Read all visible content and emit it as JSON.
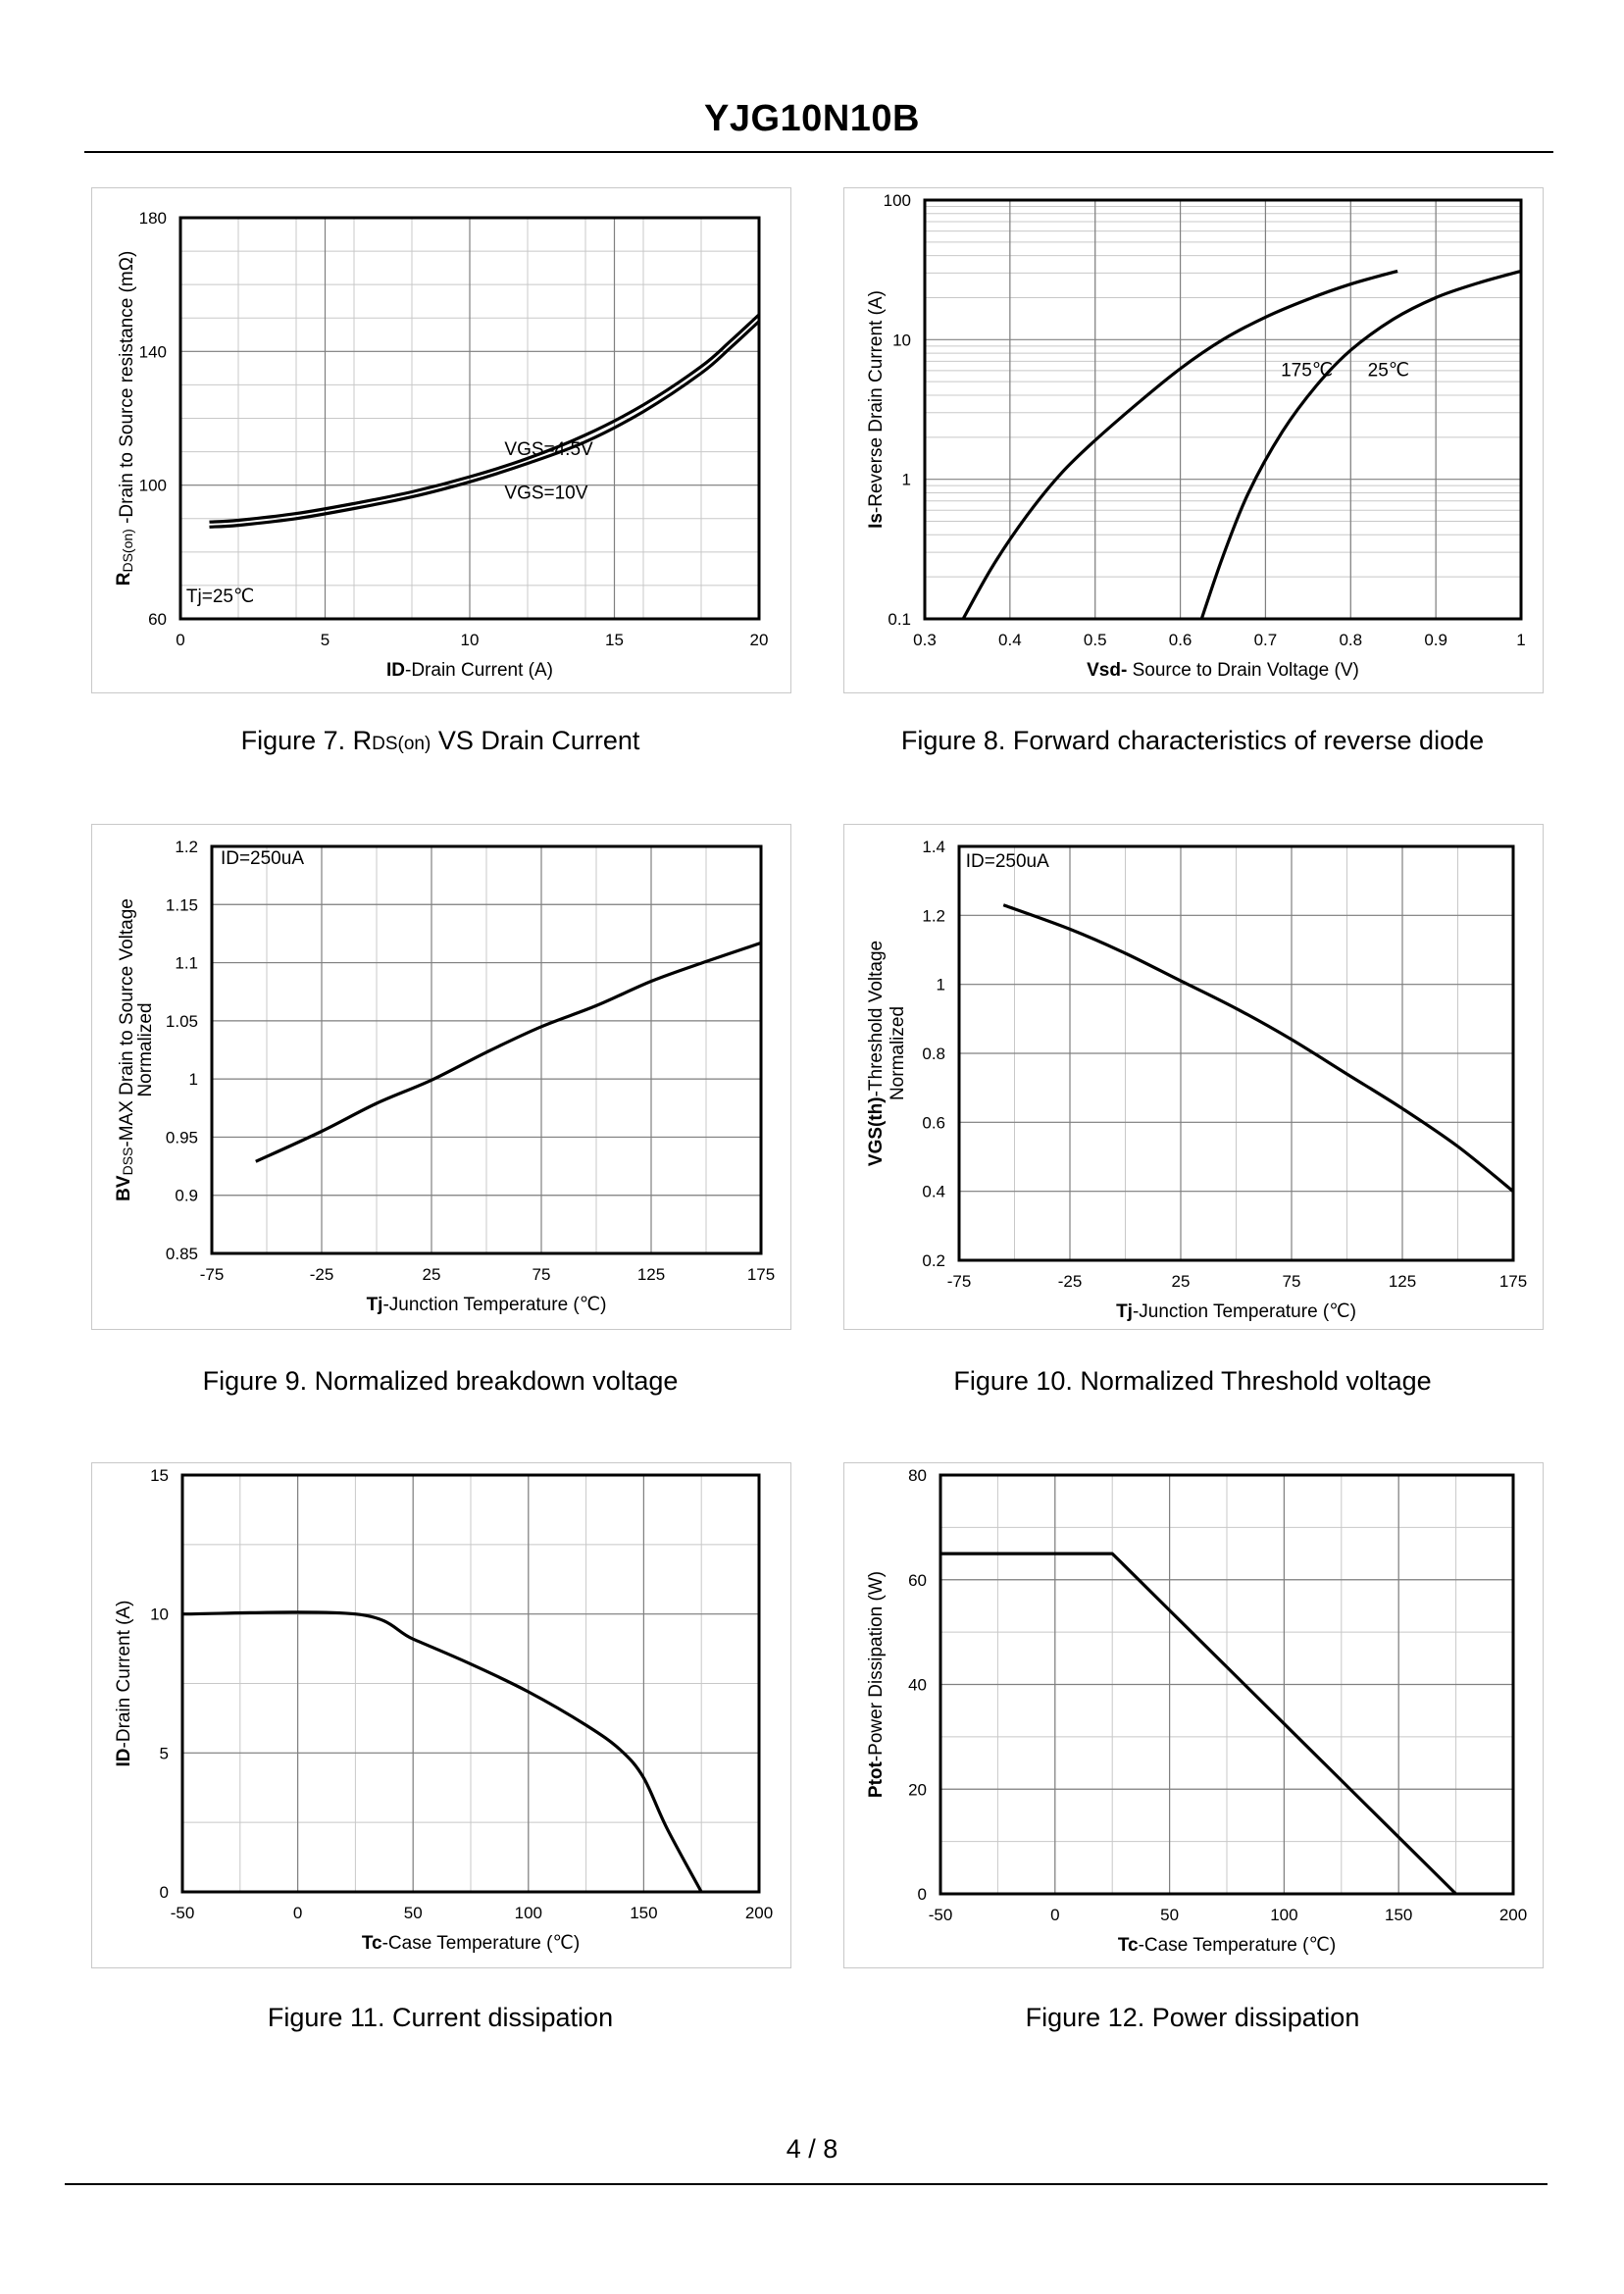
{
  "header": {
    "title": "YJG10N10B"
  },
  "footer": {
    "page": "4 / 8"
  },
  "captions": [
    {
      "prefix": "Figure 7.  R",
      "sub": "DS(on)",
      "suffix": " VS Drain Current"
    },
    {
      "prefix": "Figure 8.  Forward characteristics of reverse diode",
      "sub": "",
      "suffix": ""
    },
    {
      "prefix": "Figure 9.  Normalized breakdown voltage",
      "sub": "",
      "suffix": ""
    },
    {
      "prefix": "Figure 10.  Normalized Threshold voltage",
      "sub": "",
      "suffix": ""
    },
    {
      "prefix": "Figure 11.  Current dissipation",
      "sub": "",
      "suffix": ""
    },
    {
      "prefix": "Figure 12.  Power dissipation",
      "sub": "",
      "suffix": ""
    }
  ],
  "chart_data": [
    {
      "id": "fig7",
      "type": "line",
      "title": "Figure 7. RDS(on) VS Drain Current",
      "xlabel": {
        "parts": [
          {
            "t": "ID",
            "b": true
          },
          {
            "t": "-Drain Current  (A)"
          }
        ]
      },
      "ylabel": {
        "parts": [
          {
            "t": "R",
            "b": true
          },
          {
            "t": "DS(on)",
            "sub": true
          },
          {
            "t": " -Drain to Source resistance (mΩ)"
          }
        ]
      },
      "xlim": [
        0,
        20
      ],
      "ylim": [
        60,
        180
      ],
      "xticks": [
        0,
        5,
        10,
        15,
        20
      ],
      "yticks": [
        60,
        100,
        140,
        180
      ],
      "xminor": 10,
      "yminor": 12,
      "ylog": false,
      "series": [
        {
          "name": "VGS=4.5V",
          "x": [
            1,
            2,
            4,
            6,
            8,
            10,
            12,
            14,
            16,
            18,
            19,
            20
          ],
          "y": [
            89,
            89.5,
            91.5,
            94.5,
            98,
            102.5,
            108,
            115,
            124,
            135.5,
            143,
            151
          ]
        },
        {
          "name": "VGS=10V",
          "x": [
            1,
            2,
            4,
            6,
            8,
            10,
            12,
            14,
            16,
            18,
            19,
            20
          ],
          "y": [
            87.5,
            88,
            90,
            93,
            96.5,
            101,
            106.5,
            113,
            122,
            133.5,
            141,
            149
          ]
        }
      ],
      "annotations": [
        {
          "text": "VGS=4.5V",
          "x": 11.2,
          "y": 109
        },
        {
          "text": "VGS=10V",
          "x": 11.2,
          "y": 96
        },
        {
          "text": "Tj=25℃",
          "x": 0.2,
          "y": 65
        }
      ]
    },
    {
      "id": "fig8",
      "type": "line",
      "title": "Figure 8. Forward characteristics of reverse diode",
      "xlabel": {
        "parts": [
          {
            "t": "Vsd-",
            "b": true
          },
          {
            "t": " Source to Drain Voltage (V)"
          }
        ]
      },
      "ylabel": {
        "parts": [
          {
            "t": "Is",
            "b": true
          },
          {
            "t": "-Reverse  Drain Current  (A)"
          }
        ]
      },
      "xlim": [
        0.3,
        1.0
      ],
      "ylim": [
        0.1,
        100
      ],
      "ylog": true,
      "xticks": [
        0.3,
        0.4,
        0.5,
        0.6,
        0.7,
        0.8,
        0.9,
        1.0
      ],
      "xticklabels": [
        "0.3",
        "0.4",
        "0.5",
        "0.6",
        "0.7",
        "0.8",
        "0.9",
        "1"
      ],
      "yticks": [
        0.1,
        1,
        10,
        100
      ],
      "yticklabels": [
        "0.1",
        "1",
        "10",
        "100"
      ],
      "xminor": 7,
      "series": [
        {
          "name": "175℃",
          "x": [
            0.345,
            0.38,
            0.42,
            0.46,
            0.5,
            0.55,
            0.6,
            0.65,
            0.7,
            0.75,
            0.8,
            0.855
          ],
          "y": [
            0.1,
            0.24,
            0.55,
            1.1,
            1.9,
            3.5,
            6.2,
            10,
            14.5,
            19.5,
            25,
            31
          ]
        },
        {
          "name": "25℃",
          "x": [
            0.625,
            0.65,
            0.68,
            0.72,
            0.76,
            0.8,
            0.85,
            0.9,
            0.95,
            1.0
          ],
          "y": [
            0.1,
            0.28,
            0.8,
            2.2,
            4.7,
            8.4,
            14,
            20,
            25.5,
            31
          ]
        }
      ],
      "annotations": [
        {
          "text": "175℃",
          "x": 0.718,
          "y": 5.5
        },
        {
          "text": "25℃",
          "x": 0.82,
          "y": 5.5
        }
      ]
    },
    {
      "id": "fig9",
      "type": "line",
      "title": "Figure 9. Normalized breakdown voltage",
      "xlabel": {
        "parts": [
          {
            "t": "Tj",
            "b": true
          },
          {
            "t": "-Junction  Temperature  (℃)"
          }
        ]
      },
      "ylabel": {
        "parts": [
          {
            "t": "BV",
            "b": true
          },
          {
            "t": "DSS",
            "sub": true
          },
          {
            "t": "-MAX Drain to Source Voltage"
          }
        ]
      },
      "ylabel2": "Normalized",
      "xlim": [
        -75,
        175
      ],
      "ylim": [
        0.85,
        1.2
      ],
      "xticks": [
        -75,
        -25,
        25,
        75,
        125,
        175
      ],
      "yticks": [
        0.85,
        0.9,
        0.95,
        1,
        1.05,
        1.1,
        1.15,
        1.2
      ],
      "xminor": 10,
      "yminor": 7,
      "ylog": false,
      "series": [
        {
          "name": "BVdss",
          "x": [
            -55,
            -25,
            0,
            25,
            50,
            75,
            100,
            125,
            150,
            175
          ],
          "y": [
            0.929,
            0.955,
            0.979,
            0.999,
            1.023,
            1.045,
            1.063,
            1.084,
            1.101,
            1.117
          ]
        }
      ],
      "annotations": [
        {
          "text": "ID=250uA",
          "x": -71,
          "y": 1.185
        }
      ]
    },
    {
      "id": "fig10",
      "type": "line",
      "title": "Figure 10. Normalized Threshold voltage",
      "xlabel": {
        "parts": [
          {
            "t": "Tj",
            "b": true
          },
          {
            "t": "-Junction  Temperature  (℃)"
          }
        ]
      },
      "ylabel": {
        "parts": [
          {
            "t": "VGS(th)",
            "b": true
          },
          {
            "t": "-Threshold  Voltage"
          }
        ]
      },
      "ylabel2": "Normalized",
      "xlim": [
        -75,
        175
      ],
      "ylim": [
        0.2,
        1.4
      ],
      "xticks": [
        -75,
        -25,
        25,
        75,
        125,
        175
      ],
      "yticks": [
        0.2,
        0.4,
        0.6,
        0.8,
        1,
        1.2,
        1.4
      ],
      "xminor": 10,
      "yminor": 6,
      "ylog": false,
      "series": [
        {
          "name": "VGS(th)",
          "x": [
            -55,
            -25,
            0,
            25,
            50,
            75,
            100,
            125,
            150,
            175
          ],
          "y": [
            1.23,
            1.16,
            1.09,
            1.01,
            0.93,
            0.84,
            0.74,
            0.64,
            0.53,
            0.4
          ]
        }
      ],
      "annotations": [
        {
          "text": "ID=250uA",
          "x": -72,
          "y": 1.34
        }
      ]
    },
    {
      "id": "fig11",
      "type": "line",
      "title": "Figure 11. Current dissipation",
      "xlabel": {
        "parts": [
          {
            "t": "Tc",
            "b": true
          },
          {
            "t": "-Case Temperature  (℃)"
          }
        ]
      },
      "ylabel": {
        "parts": [
          {
            "t": "ID",
            "b": true
          },
          {
            "t": "-Drain Current  (A)"
          }
        ]
      },
      "xlim": [
        -50,
        200
      ],
      "ylim": [
        0,
        15
      ],
      "xticks": [
        -50,
        0,
        50,
        100,
        150,
        200
      ],
      "yticks": [
        0,
        5,
        10,
        15
      ],
      "xminor": 10,
      "yminor": 6,
      "ylog": false,
      "series": [
        {
          "name": "ID",
          "x": [
            -50,
            25,
            50,
            75,
            100,
            125,
            140,
            150,
            160,
            175
          ],
          "y": [
            10,
            10,
            9.1,
            8.2,
            7.2,
            6.0,
            5.1,
            4.1,
            2.3,
            0
          ]
        }
      ],
      "annotations": []
    },
    {
      "id": "fig12",
      "type": "line",
      "title": "Figure 12. Power dissipation",
      "xlabel": {
        "parts": [
          {
            "t": "Tc",
            "b": true
          },
          {
            "t": "-Case Temperature  (℃)"
          }
        ]
      },
      "ylabel": {
        "parts": [
          {
            "t": "Ptot",
            "b": true
          },
          {
            "t": "-Power Dissipation  (W)"
          }
        ]
      },
      "xlim": [
        -50,
        200
      ],
      "ylim": [
        0,
        80
      ],
      "xticks": [
        -50,
        0,
        50,
        100,
        150,
        200
      ],
      "yticks": [
        0,
        20,
        40,
        60,
        80
      ],
      "xminor": 10,
      "yminor": 8,
      "ylog": false,
      "series": [
        {
          "name": "Ptot",
          "x": [
            -50,
            25,
            175
          ],
          "y": [
            65,
            65,
            0
          ]
        }
      ],
      "annotations": []
    }
  ]
}
